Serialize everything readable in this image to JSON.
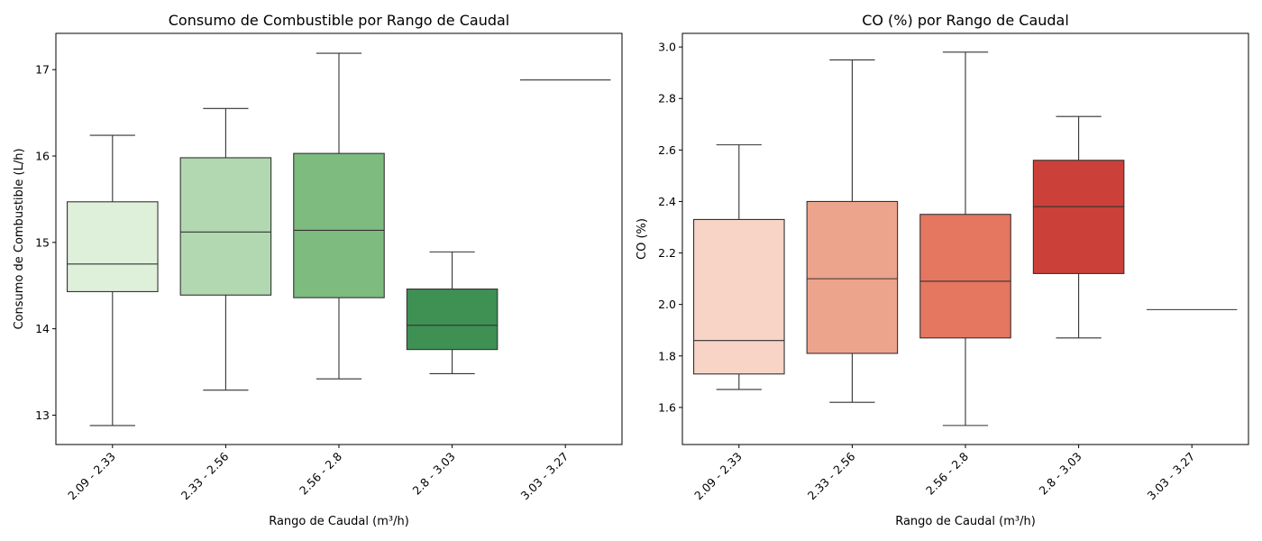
{
  "chart_data": [
    {
      "type": "box",
      "title": "Consumo de Combustible por Rango de Caudal",
      "xlabel": "Rango de Caudal (m³/h)",
      "ylabel": "Consumo de Combustible (L/h)",
      "categories": [
        "2.09 - 2.33",
        "2.33 - 2.56",
        "2.56 - 2.8",
        "2.8 - 3.03",
        "3.03 - 3.27"
      ],
      "ylim": [
        12.66,
        17.42
      ],
      "yticks": [
        13,
        14,
        15,
        16,
        17
      ],
      "ytick_labels": [
        "13",
        "14",
        "15",
        "16",
        "17"
      ],
      "grid": false,
      "colors": [
        "#dff0da",
        "#b2d8b1",
        "#7dbb7e",
        "#3e9053",
        "#3e9053"
      ],
      "boxes": [
        {
          "whisker_low": 12.88,
          "q1": 14.43,
          "median": 14.75,
          "q3": 15.47,
          "whisker_high": 16.24
        },
        {
          "whisker_low": 13.29,
          "q1": 14.39,
          "median": 15.12,
          "q3": 15.98,
          "whisker_high": 16.55
        },
        {
          "whisker_low": 13.42,
          "q1": 14.36,
          "median": 15.14,
          "q3": 16.03,
          "whisker_high": 17.19
        },
        {
          "whisker_low": 13.48,
          "q1": 13.76,
          "median": 14.04,
          "q3": 14.46,
          "whisker_high": 14.89
        },
        {
          "whisker_low": 16.88,
          "q1": 16.88,
          "median": 16.88,
          "q3": 16.88,
          "whisker_high": 16.88
        }
      ]
    },
    {
      "type": "box",
      "title": "CO (%) por Rango de Caudal",
      "xlabel": "Rango de Caudal (m³/h)",
      "ylabel": "CO (%)",
      "categories": [
        "2.09 - 2.33",
        "2.33 - 2.56",
        "2.56 - 2.8",
        "2.8 - 3.03",
        "3.03 - 3.27"
      ],
      "ylim": [
        1.456,
        3.053
      ],
      "yticks": [
        1.6,
        1.8,
        2.0,
        2.2,
        2.4,
        2.6,
        2.8,
        3.0
      ],
      "ytick_labels": [
        "1.6",
        "1.8",
        "2.0",
        "2.2",
        "2.4",
        "2.6",
        "2.8",
        "3.0"
      ],
      "grid": false,
      "colors": [
        "#f7d4c6",
        "#eda48c",
        "#e57660",
        "#cb4139",
        "#cb4139"
      ],
      "boxes": [
        {
          "whisker_low": 1.67,
          "q1": 1.73,
          "median": 1.86,
          "q3": 2.33,
          "whisker_high": 2.62
        },
        {
          "whisker_low": 1.62,
          "q1": 1.81,
          "median": 2.1,
          "q3": 2.4,
          "whisker_high": 2.95
        },
        {
          "whisker_low": 1.53,
          "q1": 1.87,
          "median": 2.09,
          "q3": 2.35,
          "whisker_high": 2.98
        },
        {
          "whisker_low": 1.87,
          "q1": 2.12,
          "median": 2.38,
          "q3": 2.56,
          "whisker_high": 2.73
        },
        {
          "whisker_low": 1.98,
          "q1": 1.98,
          "median": 1.98,
          "q3": 1.98,
          "whisker_high": 1.98
        }
      ]
    }
  ]
}
